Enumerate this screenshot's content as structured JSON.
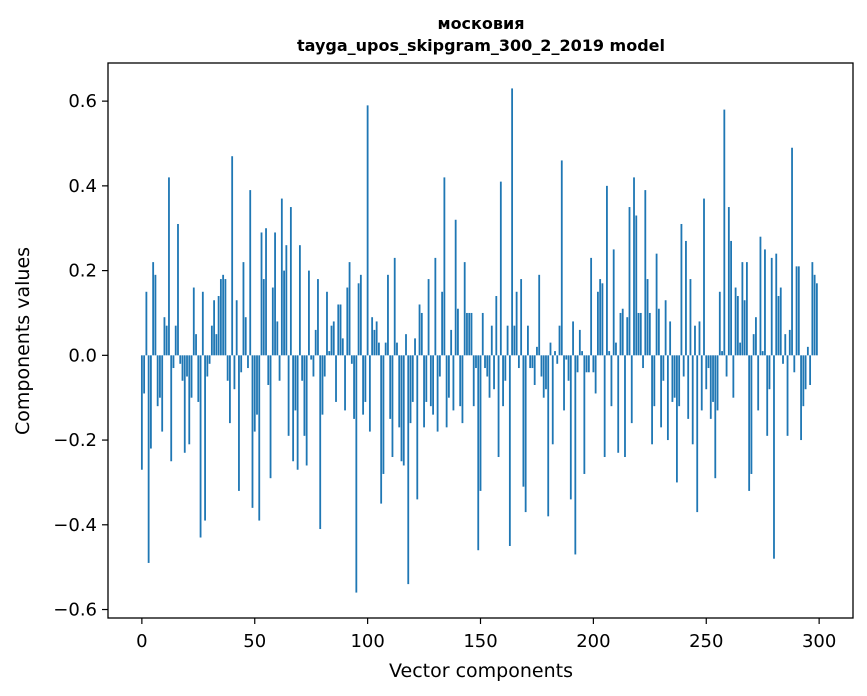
{
  "chart_data": {
    "type": "bar",
    "title": "московия",
    "subtitle": "tayga_upos_skipgram_300_2_2019 model",
    "xlabel": "Vector components",
    "ylabel": "Components values",
    "xlim": [
      -15,
      315
    ],
    "ylim": [
      -0.62,
      0.69
    ],
    "xticks": [
      0,
      50,
      100,
      150,
      200,
      250,
      300
    ],
    "xtick_labels": [
      "0",
      "50",
      "100",
      "150",
      "200",
      "250",
      "300"
    ],
    "yticks": [
      -0.6,
      -0.4,
      -0.2,
      0.0,
      0.2,
      0.4,
      0.6
    ],
    "ytick_labels": [
      "−0.6",
      "−0.4",
      "−0.2",
      "0.0",
      "0.2",
      "0.4",
      "0.6"
    ],
    "grid": false,
    "bar_color": "#1f77b4",
    "values": [
      -0.27,
      -0.09,
      0.15,
      -0.49,
      -0.22,
      0.22,
      0.19,
      -0.12,
      -0.1,
      -0.18,
      0.09,
      0.07,
      0.42,
      -0.25,
      -0.03,
      0.07,
      0.31,
      -0.02,
      -0.06,
      -0.23,
      -0.05,
      -0.21,
      -0.1,
      0.16,
      0.05,
      -0.11,
      -0.43,
      0.15,
      -0.39,
      -0.05,
      -0.02,
      0.07,
      0.13,
      0.05,
      0.14,
      0.18,
      0.19,
      0.18,
      -0.06,
      -0.16,
      0.47,
      -0.08,
      0.13,
      -0.32,
      -0.04,
      0.22,
      0.09,
      -0.03,
      0.39,
      -0.36,
      -0.18,
      -0.14,
      -0.39,
      0.29,
      0.18,
      0.3,
      -0.07,
      -0.29,
      0.16,
      0.29,
      0.08,
      -0.06,
      0.37,
      0.2,
      0.26,
      -0.19,
      0.35,
      -0.25,
      -0.13,
      -0.27,
      0.26,
      -0.06,
      -0.19,
      -0.26,
      0.2,
      -0.01,
      -0.05,
      0.06,
      0.18,
      -0.41,
      -0.14,
      -0.05,
      0.15,
      0.01,
      0.07,
      0.08,
      -0.11,
      0.12,
      0.12,
      0.04,
      -0.13,
      0.16,
      0.22,
      -0.02,
      -0.15,
      -0.56,
      0.17,
      0.19,
      -0.14,
      -0.11,
      0.59,
      -0.18,
      0.09,
      0.06,
      0.08,
      0.03,
      -0.35,
      -0.28,
      0.03,
      0.19,
      -0.15,
      -0.24,
      0.23,
      0.03,
      -0.17,
      -0.25,
      -0.26,
      0.05,
      -0.54,
      -0.16,
      -0.11,
      0.04,
      -0.34,
      0.12,
      0.1,
      -0.17,
      -0.11,
      0.18,
      -0.12,
      -0.14,
      0.23,
      -0.18,
      -0.05,
      0.15,
      0.42,
      -0.17,
      -0.1,
      0.06,
      -0.13,
      0.32,
      0.11,
      -0.12,
      -0.16,
      0.22,
      0.1,
      0.1,
      0.1,
      -0.12,
      -0.03,
      -0.46,
      -0.32,
      0.1,
      -0.03,
      -0.05,
      -0.1,
      0.07,
      -0.08,
      0.14,
      -0.24,
      0.41,
      -0.12,
      -0.06,
      0.07,
      -0.45,
      0.63,
      0.07,
      0.15,
      -0.03,
      0.18,
      -0.31,
      -0.37,
      0.07,
      -0.03,
      -0.03,
      -0.07,
      0.02,
      0.19,
      -0.05,
      -0.1,
      -0.08,
      -0.38,
      0.03,
      -0.21,
      0.01,
      -0.02,
      0.07,
      0.46,
      -0.13,
      -0.01,
      -0.06,
      -0.34,
      0.08,
      -0.47,
      -0.04,
      0.06,
      0.01,
      -0.28,
      -0.04,
      -0.04,
      0.23,
      -0.04,
      -0.09,
      0.15,
      0.18,
      0.17,
      -0.24,
      0.4,
      0.01,
      -0.12,
      0.25,
      0.03,
      -0.23,
      0.1,
      0.11,
      -0.24,
      0.09,
      0.35,
      -0.16,
      0.42,
      0.33,
      0.1,
      0.1,
      -0.03,
      0.39,
      0.18,
      0.1,
      -0.21,
      -0.12,
      0.24,
      0.11,
      -0.17,
      -0.06,
      0.13,
      -0.2,
      0.08,
      -0.11,
      -0.1,
      -0.3,
      -0.12,
      0.31,
      -0.05,
      0.27,
      -0.15,
      0.18,
      -0.21,
      0.07,
      -0.37,
      0.08,
      -0.13,
      0.37,
      -0.08,
      -0.03,
      -0.15,
      -0.11,
      -0.29,
      -0.13,
      0.15,
      0.01,
      0.58,
      -0.05,
      0.35,
      0.27,
      -0.1,
      0.16,
      0.14,
      0.03,
      0.22,
      0.13,
      0.22,
      -0.32,
      -0.28,
      0.05,
      0.09,
      -0.13,
      0.28,
      0.01,
      0.25,
      -0.19,
      -0.08,
      0.23,
      -0.48,
      0.24,
      0.14,
      0.16,
      -0.02,
      0.05,
      -0.19,
      0.06,
      0.49,
      -0.04,
      0.21,
      0.21,
      -0.2,
      -0.12,
      -0.08,
      0.02,
      -0.07,
      0.22,
      0.19,
      0.17
    ]
  }
}
